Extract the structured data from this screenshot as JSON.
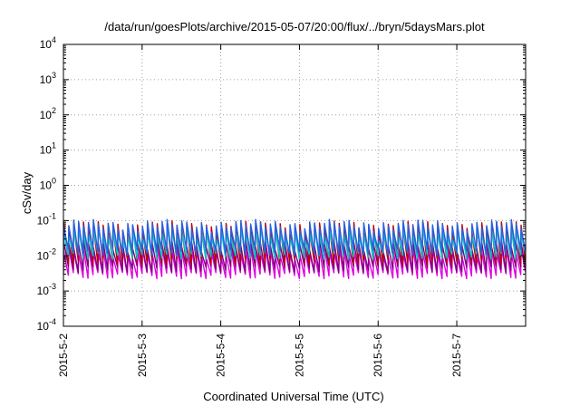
{
  "chart_data": {
    "type": "line",
    "title": "/data/run/goesPlots/archive/2015-05-07/20:00/flux/../bryn/5daysMars.plot",
    "xlabel": "Coordinated Universal Time (UTC)",
    "ylabel": "cSv/day",
    "yscale": "log",
    "ylim": [
      0.0001,
      10000
    ],
    "xlim": [
      "2015-05-02T00:00",
      "2015-05-07T21:00"
    ],
    "grid": true,
    "legend": "none",
    "x_tick_labels": [
      "2015-5-2",
      "2015-5-3",
      "2015-5-4",
      "2015-5-5",
      "2015-5-6",
      "2015-5-7"
    ],
    "y_ticks": [
      {
        "base": "10",
        "exp": "-4"
      },
      {
        "base": "10",
        "exp": "-3"
      },
      {
        "base": "10",
        "exp": "-2"
      },
      {
        "base": "10",
        "exp": "-1"
      },
      {
        "base": "10",
        "exp": "0"
      },
      {
        "base": "10",
        "exp": "1"
      },
      {
        "base": "10",
        "exp": "2"
      },
      {
        "base": "10",
        "exp": "3"
      },
      {
        "base": "10",
        "exp": "4"
      }
    ],
    "sawtooth_period_hours": 1.5,
    "series": [
      {
        "color": "#e000e0",
        "peak": 0.013,
        "trough": 0.0028
      },
      {
        "color": "#800080",
        "peak": 0.02,
        "trough": 0.0042
      },
      {
        "color": "#c00000",
        "peak": 0.07,
        "trough": 0.007
      },
      {
        "color": "#00c8c8",
        "peak": 0.045,
        "trough": 0.01
      },
      {
        "color": "#2860e0",
        "peak": 0.078,
        "trough": 0.013
      }
    ]
  }
}
